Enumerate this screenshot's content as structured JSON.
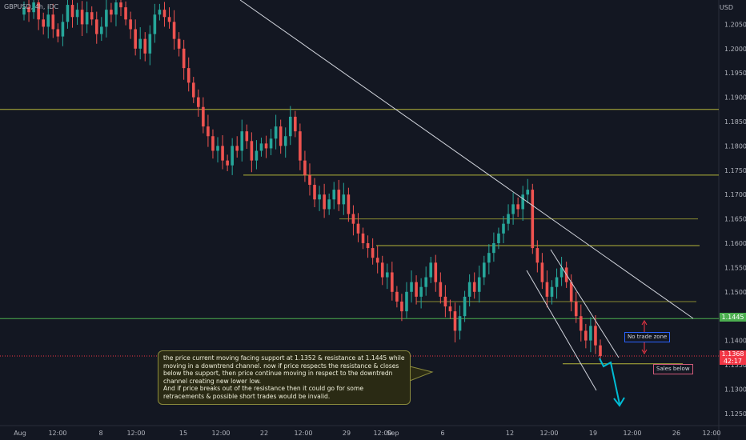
{
  "header": {
    "symbol": "GBPUSD, 4h, IDC"
  },
  "axis_currency": "USD",
  "price_tags": {
    "current_green": "1.1445",
    "current_red": "1.1368",
    "countdown": "42:17"
  },
  "labels": {
    "no_trade": "No trade zone",
    "sales": "Sales below"
  },
  "note": {
    "line1": "the price current moving facing support at 1.1352 & resistance at 1.1445 while moving in a downtrend channel. now if price respects the resistance & closes below the support, then price continue moving in respect to the downtredn channel creating new lower low.",
    "line2": "And if price breaks out of the resistance then it could go for some retracements & possible short trades would be invalid."
  },
  "colors": {
    "bull": "#26a69a",
    "bear": "#ef5350",
    "level": "#b5b53a",
    "support": "#4caf50",
    "red_tag": "#f23645"
  },
  "chart_data": {
    "type": "candlestick",
    "title": "",
    "xlabel": "",
    "ylabel": "",
    "ylim": [
      1.122,
      1.211
    ],
    "y_ticks": [
      1.205,
      1.2,
      1.195,
      1.19,
      1.185,
      1.18,
      1.175,
      1.17,
      1.165,
      1.16,
      1.155,
      1.15,
      1.145,
      1.14,
      1.135,
      1.13,
      1.125
    ],
    "x_ticks": [
      "Aug",
      "12:00",
      "8",
      "12:00",
      "15",
      "12:00",
      "22",
      "12:00",
      "29",
      "12:00",
      "Sep",
      "6",
      "12",
      "12:00",
      "19",
      "12:00",
      "26",
      "12:00"
    ],
    "closes": [
      1.2085,
      1.2075,
      1.2095,
      1.206,
      1.2045,
      1.207,
      1.204,
      1.2025,
      1.2055,
      1.209,
      1.2065,
      1.208,
      1.205,
      1.2075,
      1.206,
      1.203,
      1.2045,
      1.208,
      1.207,
      1.2095,
      1.2085,
      1.206,
      1.204,
      1.2,
      1.202,
      1.199,
      1.203,
      1.207,
      1.208,
      1.2065,
      1.2055,
      1.202,
      1.2,
      1.196,
      1.193,
      1.19,
      1.188,
      1.184,
      1.182,
      1.179,
      1.18,
      1.177,
      1.176,
      1.18,
      1.179,
      1.183,
      1.181,
      1.177,
      1.179,
      1.1805,
      1.1795,
      1.1815,
      1.184,
      1.18,
      1.182,
      1.186,
      1.183,
      1.177,
      1.174,
      1.172,
      1.169,
      1.17,
      1.167,
      1.169,
      1.171,
      1.168,
      1.17,
      1.166,
      1.164,
      1.162,
      1.16,
      1.159,
      1.157,
      1.156,
      1.153,
      1.154,
      1.15,
      1.148,
      1.146,
      1.15,
      1.152,
      1.149,
      1.151,
      1.153,
      1.156,
      1.152,
      1.149,
      1.147,
      1.146,
      1.142,
      1.145,
      1.149,
      1.152,
      1.15,
      1.153,
      1.156,
      1.158,
      1.16,
      1.162,
      1.164,
      1.166,
      1.168,
      1.167,
      1.17,
      1.171,
      1.159,
      1.156,
      1.152,
      1.149,
      1.151,
      1.153,
      1.155,
      1.152,
      1.148,
      1.145,
      1.142,
      1.14,
      1.143,
      1.139,
      1.1368
    ],
    "levels": [
      1.1875,
      1.174,
      1.165,
      1.1595,
      1.148,
      1.1445,
      1.1368,
      1.1352
    ]
  }
}
